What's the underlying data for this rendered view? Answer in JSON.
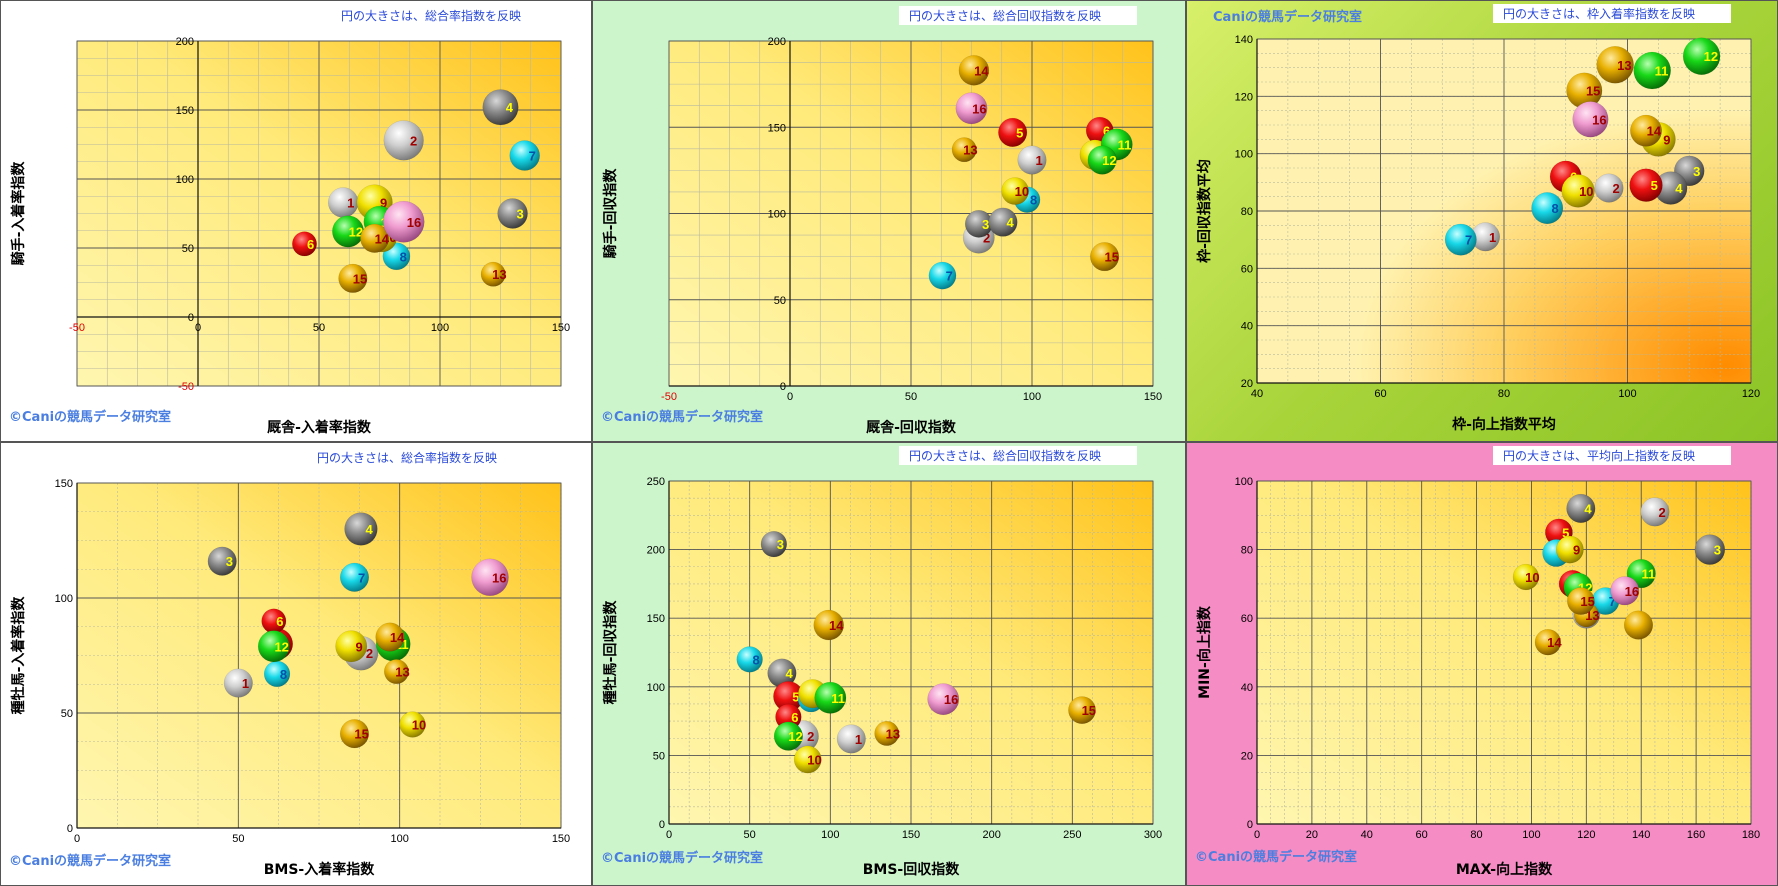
{
  "chart_data": [
    {
      "type": "scatter",
      "note": "円の大きさは、総合率指数を反映",
      "xlabel": "厩舎-入着率指数",
      "ylabel": "騎手-入着率指数",
      "credit": "©Caniの競馬データ研究室",
      "xlim": [
        -50,
        150
      ],
      "ylim": [
        -50,
        200
      ],
      "xticks": [
        -50,
        0,
        50,
        100,
        150
      ],
      "yticks": [
        -50,
        0,
        50,
        100,
        150,
        200
      ],
      "red_ticks": [
        -50
      ],
      "panel_bg": "#ffffff",
      "points": [
        {
          "label": "1",
          "x": 60,
          "y": 83,
          "color": "white",
          "size": 0.5
        },
        {
          "label": "2",
          "x": 85,
          "y": 128,
          "color": "white",
          "size": 0.85
        },
        {
          "label": "3",
          "x": 130,
          "y": 75,
          "color": "gray",
          "size": 0.5
        },
        {
          "label": "4",
          "x": 125,
          "y": 152,
          "color": "gray",
          "size": 0.7
        },
        {
          "label": "6",
          "x": 44,
          "y": 53,
          "color": "red",
          "size": 0.3
        },
        {
          "label": "7",
          "x": 135,
          "y": 117,
          "color": "cyan",
          "size": 0.5
        },
        {
          "label": "8",
          "x": 82,
          "y": 44,
          "color": "cyan",
          "size": 0.4
        },
        {
          "label": "9",
          "x": 73,
          "y": 83,
          "color": "yellow",
          "size": 0.7
        },
        {
          "label": "10",
          "x": 76,
          "y": 58,
          "color": "yellow",
          "size": 0.5
        },
        {
          "label": "11",
          "x": 75,
          "y": 69,
          "color": "green",
          "size": 0.55
        },
        {
          "label": "12",
          "x": 62,
          "y": 62,
          "color": "green",
          "size": 0.55
        },
        {
          "label": "13",
          "x": 122,
          "y": 31,
          "color": "gold",
          "size": 0.3
        },
        {
          "label": "14",
          "x": 73,
          "y": 57,
          "color": "gold",
          "size": 0.45
        },
        {
          "label": "15",
          "x": 64,
          "y": 28,
          "color": "gold",
          "size": 0.45
        },
        {
          "label": "16",
          "x": 85,
          "y": 69,
          "color": "pink",
          "size": 0.9
        }
      ]
    },
    {
      "type": "scatter",
      "note": "円の大きさは、総合回収指数を反映",
      "xlabel": "厩舎-回収指数",
      "ylabel": "騎手-回収指数",
      "credit": "©Caniの競馬データ研究室",
      "xlim": [
        -50,
        150
      ],
      "ylim": [
        0,
        200
      ],
      "xticks": [
        -50,
        0,
        50,
        100,
        150
      ],
      "yticks": [
        0,
        50,
        100,
        150,
        200
      ],
      "red_ticks": [
        -50
      ],
      "panel_bg": "#ccf5cc",
      "points": [
        {
          "label": "1",
          "x": 100,
          "y": 131,
          "color": "white",
          "size": 0.45
        },
        {
          "label": "2",
          "x": 78,
          "y": 86,
          "color": "white",
          "size": 0.55
        },
        {
          "label": "3",
          "x": 78,
          "y": 94,
          "color": "gray",
          "size": 0.4
        },
        {
          "label": "4",
          "x": 88,
          "y": 95,
          "color": "gray",
          "size": 0.45
        },
        {
          "label": "5",
          "x": 92,
          "y": 147,
          "color": "red",
          "size": 0.45
        },
        {
          "label": "6",
          "x": 128,
          "y": 148,
          "color": "red",
          "size": 0.4
        },
        {
          "label": "7",
          "x": 63,
          "y": 64,
          "color": "cyan",
          "size": 0.4
        },
        {
          "label": "8",
          "x": 98,
          "y": 108,
          "color": "cyan",
          "size": 0.35
        },
        {
          "label": "9",
          "x": 126,
          "y": 134,
          "color": "yellow",
          "size": 0.5
        },
        {
          "label": "10",
          "x": 93,
          "y": 113,
          "color": "yellow",
          "size": 0.4
        },
        {
          "label": "11",
          "x": 135,
          "y": 140,
          "color": "green",
          "size": 0.55
        },
        {
          "label": "12",
          "x": 129,
          "y": 131,
          "color": "green",
          "size": 0.45
        },
        {
          "label": "13",
          "x": 72,
          "y": 137,
          "color": "gold",
          "size": 0.3
        },
        {
          "label": "14",
          "x": 76,
          "y": 183,
          "color": "gold",
          "size": 0.5
        },
        {
          "label": "15",
          "x": 130,
          "y": 75,
          "color": "gold",
          "size": 0.45
        },
        {
          "label": "16",
          "x": 75,
          "y": 161,
          "color": "pink",
          "size": 0.55
        }
      ]
    },
    {
      "type": "scatter",
      "note": "円の大きさは、枠入着率指数を反映",
      "xlabel": "枠-向上指数平均",
      "ylabel": "枠-回収指数平均",
      "credit": "Caniの競馬データ研究室",
      "xlim": [
        40,
        120
      ],
      "ylim": [
        20,
        140
      ],
      "xticks": [
        40,
        60,
        80,
        100,
        120
      ],
      "yticks": [
        20,
        40,
        60,
        80,
        100,
        120,
        140
      ],
      "red_ticks": [],
      "panel_bg": "#b5de42",
      "points": [
        {
          "label": "1",
          "x": 77,
          "y": 71,
          "color": "white",
          "size": 0.45
        },
        {
          "label": "2",
          "x": 97,
          "y": 88,
          "color": "white",
          "size": 0.45
        },
        {
          "label": "3",
          "x": 110,
          "y": 94,
          "color": "gray",
          "size": 0.5
        },
        {
          "label": "4",
          "x": 107,
          "y": 88,
          "color": "gray",
          "size": 0.6
        },
        {
          "label": "5",
          "x": 103,
          "y": 89,
          "color": "red",
          "size": 0.6
        },
        {
          "label": "6",
          "x": 90,
          "y": 92,
          "color": "red",
          "size": 0.55
        },
        {
          "label": "7",
          "x": 73,
          "y": 70,
          "color": "cyan",
          "size": 0.55
        },
        {
          "label": "8",
          "x": 87,
          "y": 81,
          "color": "cyan",
          "size": 0.55
        },
        {
          "label": "9",
          "x": 105,
          "y": 105,
          "color": "yellow",
          "size": 0.65
        },
        {
          "label": "10",
          "x": 92,
          "y": 87,
          "color": "yellow",
          "size": 0.6
        },
        {
          "label": "11",
          "x": 104,
          "y": 129,
          "color": "green",
          "size": 0.75
        },
        {
          "label": "12",
          "x": 112,
          "y": 134,
          "color": "green",
          "size": 0.75
        },
        {
          "label": "13",
          "x": 98,
          "y": 131,
          "color": "gold",
          "size": 0.75
        },
        {
          "label": "14",
          "x": 103,
          "y": 108,
          "color": "gold",
          "size": 0.55
        },
        {
          "label": "15",
          "x": 93,
          "y": 122,
          "color": "gold",
          "size": 0.7
        },
        {
          "label": "16",
          "x": 94,
          "y": 112,
          "color": "pink",
          "size": 0.7
        }
      ]
    },
    {
      "type": "scatter",
      "note": "円の大きさは、総合率指数を反映",
      "xlabel": "BMS-入着率指数",
      "ylabel": "種牡馬-入着率指数",
      "credit": "©Caniの競馬データ研究室",
      "xlim": [
        0,
        150
      ],
      "ylim": [
        0,
        150
      ],
      "xticks": [
        0,
        50,
        100,
        150
      ],
      "yticks": [
        0,
        50,
        100,
        150
      ],
      "red_ticks": [],
      "panel_bg": "#ffffff",
      "points": [
        {
          "label": "1",
          "x": 50,
          "y": 63,
          "color": "white",
          "size": 0.45
        },
        {
          "label": "2",
          "x": 88,
          "y": 76,
          "color": "white",
          "size": 0.65
        },
        {
          "label": "3",
          "x": 45,
          "y": 116,
          "color": "gray",
          "size": 0.45
        },
        {
          "label": "4",
          "x": 88,
          "y": 130,
          "color": "gray",
          "size": 0.6
        },
        {
          "label": "5",
          "x": 62,
          "y": 80,
          "color": "red",
          "size": 0.55
        },
        {
          "label": "6",
          "x": 61,
          "y": 90,
          "color": "red",
          "size": 0.3
        },
        {
          "label": "7",
          "x": 86,
          "y": 109,
          "color": "cyan",
          "size": 0.45
        },
        {
          "label": "8",
          "x": 62,
          "y": 67,
          "color": "cyan",
          "size": 0.35
        },
        {
          "label": "9",
          "x": 85,
          "y": 79,
          "color": "yellow",
          "size": 0.55
        },
        {
          "label": "10",
          "x": 104,
          "y": 45,
          "color": "yellow",
          "size": 0.35
        },
        {
          "label": "11",
          "x": 98,
          "y": 80,
          "color": "green",
          "size": 0.65
        },
        {
          "label": "12",
          "x": 61,
          "y": 79,
          "color": "green",
          "size": 0.55
        },
        {
          "label": "13",
          "x": 99,
          "y": 68,
          "color": "gold",
          "size": 0.3
        },
        {
          "label": "14",
          "x": 97,
          "y": 83,
          "color": "gold",
          "size": 0.45
        },
        {
          "label": "15",
          "x": 86,
          "y": 41,
          "color": "gold",
          "size": 0.45
        },
        {
          "label": "16",
          "x": 128,
          "y": 109,
          "color": "pink",
          "size": 0.75
        }
      ]
    },
    {
      "type": "scatter",
      "note": "円の大きさは、総合回収指数を反映",
      "xlabel": "BMS-回収指数",
      "ylabel": "種牡馬-回収指数",
      "credit": "©Caniの競馬データ研究室",
      "xlim": [
        0,
        300
      ],
      "ylim": [
        0,
        250
      ],
      "xticks": [
        0,
        50,
        100,
        150,
        200,
        250,
        300
      ],
      "yticks": [
        0,
        50,
        100,
        150,
        200,
        250
      ],
      "red_ticks": [],
      "panel_bg": "#ccf5cc",
      "points": [
        {
          "label": "1",
          "x": 113,
          "y": 62,
          "color": "white",
          "size": 0.45
        },
        {
          "label": "2",
          "x": 83,
          "y": 64,
          "color": "white",
          "size": 0.55
        },
        {
          "label": "3",
          "x": 65,
          "y": 204,
          "color": "gray",
          "size": 0.35
        },
        {
          "label": "4",
          "x": 70,
          "y": 110,
          "color": "gray",
          "size": 0.45
        },
        {
          "label": "5",
          "x": 74,
          "y": 93,
          "color": "red",
          "size": 0.5
        },
        {
          "label": "6",
          "x": 74,
          "y": 78,
          "color": "red",
          "size": 0.35
        },
        {
          "label": "7",
          "x": 88,
          "y": 91,
          "color": "cyan",
          "size": 0.35
        },
        {
          "label": "8",
          "x": 50,
          "y": 120,
          "color": "cyan",
          "size": 0.35
        },
        {
          "label": "9",
          "x": 89,
          "y": 95,
          "color": "yellow",
          "size": 0.45
        },
        {
          "label": "10",
          "x": 86,
          "y": 47,
          "color": "yellow",
          "size": 0.4
        },
        {
          "label": "11",
          "x": 100,
          "y": 92,
          "color": "green",
          "size": 0.55
        },
        {
          "label": "12",
          "x": 74,
          "y": 64,
          "color": "green",
          "size": 0.45
        },
        {
          "label": "13",
          "x": 135,
          "y": 66,
          "color": "gold",
          "size": 0.3
        },
        {
          "label": "14",
          "x": 99,
          "y": 145,
          "color": "gold",
          "size": 0.5
        },
        {
          "label": "15",
          "x": 256,
          "y": 83,
          "color": "gold",
          "size": 0.4
        },
        {
          "label": "16",
          "x": 170,
          "y": 91,
          "color": "pink",
          "size": 0.55
        }
      ]
    },
    {
      "type": "scatter",
      "note": "円の大きさは、平均向上指数を反映",
      "xlabel": "MAX-向上指数",
      "ylabel": "MIN-向上指数",
      "credit": "©Caniの競馬データ研究室",
      "xlim": [
        0,
        180
      ],
      "ylim": [
        0,
        100
      ],
      "xticks": [
        0,
        20,
        40,
        60,
        80,
        100,
        120,
        140,
        160,
        180
      ],
      "yticks": [
        0,
        20,
        40,
        60,
        80,
        100
      ],
      "red_ticks": [],
      "panel_bg": "#f58cc4",
      "points": [
        {
          "label": "1",
          "x": 120,
          "y": 61,
          "color": "white",
          "size": 0.4
        },
        {
          "label": "2",
          "x": 145,
          "y": 91,
          "color": "white",
          "size": 0.45
        },
        {
          "label": "3",
          "x": 165,
          "y": 80,
          "color": "gray",
          "size": 0.5
        },
        {
          "label": "4",
          "x": 118,
          "y": 92,
          "color": "gray",
          "size": 0.45
        },
        {
          "label": "5",
          "x": 110,
          "y": 85,
          "color": "red",
          "size": 0.4
        },
        {
          "label": "6",
          "x": 115,
          "y": 70,
          "color": "red",
          "size": 0.4
        },
        {
          "label": "7",
          "x": 127,
          "y": 65,
          "color": "cyan",
          "size": 0.4
        },
        {
          "label": "8",
          "x": 109,
          "y": 79,
          "color": "cyan",
          "size": 0.4
        },
        {
          "label": "9",
          "x": 114,
          "y": 80,
          "color": "yellow",
          "size": 0.4
        },
        {
          "label": "10",
          "x": 98,
          "y": 72,
          "color": "yellow",
          "size": 0.35
        },
        {
          "label": "11",
          "x": 140,
          "y": 73,
          "color": "green",
          "size": 0.45
        },
        {
          "label": "12",
          "x": 117,
          "y": 69,
          "color": "green",
          "size": 0.45
        },
        {
          "label": "13",
          "x": 120,
          "y": 61,
          "color": "gold",
          "size": 0.3
        },
        {
          "label": "14",
          "x": 106,
          "y": 53,
          "color": "gold",
          "size": 0.35
        },
        {
          "label": "15",
          "x": 118,
          "y": 65,
          "color": "gold",
          "size": 0.4
        },
        {
          "label": "16",
          "x": 134,
          "y": 68,
          "color": "pink",
          "size": 0.45
        },
        {
          "label": "",
          "x": 139,
          "y": 58,
          "color": "gold",
          "size": 0.45
        }
      ]
    }
  ]
}
